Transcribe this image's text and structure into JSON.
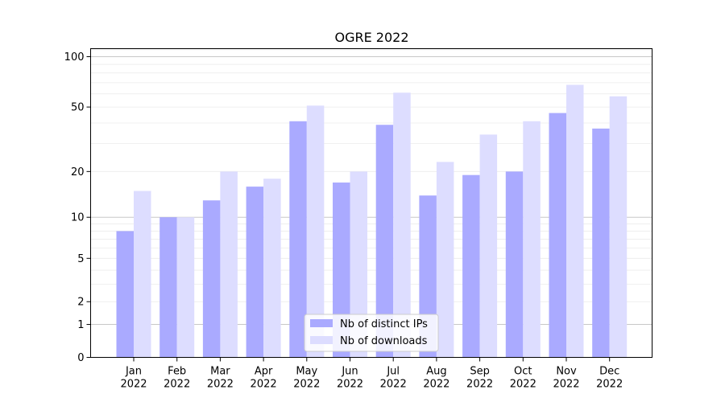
{
  "chart_data": {
    "type": "bar",
    "title": "OGRE 2022",
    "xlabel": "",
    "ylabel": "",
    "y_scale": "symlog",
    "ylim": [
      0,
      120
    ],
    "y_ticks": [
      0,
      1,
      2,
      5,
      10,
      20,
      50,
      100
    ],
    "grid": true,
    "legend_position": "bottom-center",
    "categories": [
      "Jan 2022",
      "Feb 2022",
      "Mar 2022",
      "Apr 2022",
      "May 2022",
      "Jun 2022",
      "Jul 2022",
      "Aug 2022",
      "Sep 2022",
      "Oct 2022",
      "Nov 2022",
      "Dec 2022"
    ],
    "category_lines": [
      [
        "Jan",
        "2022"
      ],
      [
        "Feb",
        "2022"
      ],
      [
        "Mar",
        "2022"
      ],
      [
        "Apr",
        "2022"
      ],
      [
        "May",
        "2022"
      ],
      [
        "Jun",
        "2022"
      ],
      [
        "Jul",
        "2022"
      ],
      [
        "Aug",
        "2022"
      ],
      [
        "Sep",
        "2022"
      ],
      [
        "Oct",
        "2022"
      ],
      [
        "Nov",
        "2022"
      ],
      [
        "Dec",
        "2022"
      ]
    ],
    "series": [
      {
        "name": "Nb of distinct IPs",
        "color": "#aaaaff",
        "values": [
          8,
          10,
          13,
          16,
          41,
          17,
          39,
          14,
          19,
          20,
          46,
          37
        ]
      },
      {
        "name": "Nb of downloads",
        "color": "#ddddff",
        "values": [
          15,
          10,
          20,
          18,
          51,
          20,
          61,
          23,
          34,
          41,
          68,
          58
        ]
      }
    ]
  }
}
